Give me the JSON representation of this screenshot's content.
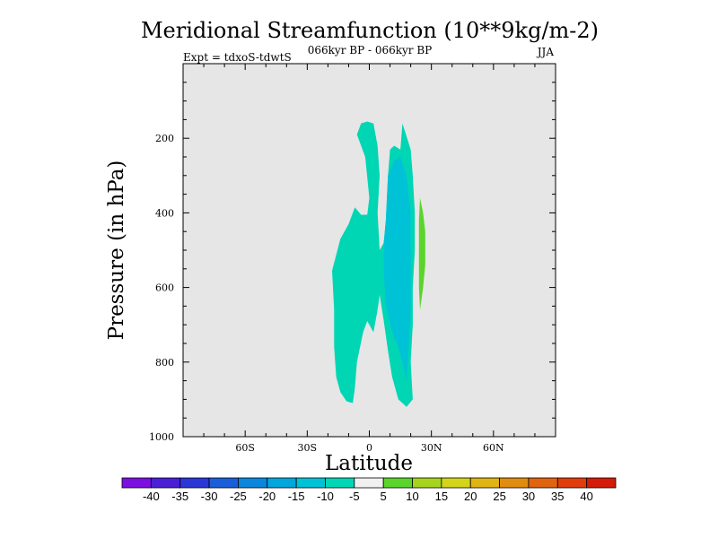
{
  "chart_data": {
    "type": "contour",
    "title": "Meridional Streamfunction (10**9kg/m-2)",
    "subtitle": "066kyr BP - 066kyr BP",
    "left_label": "Expt = tdxoS-tdwtS",
    "right_label": "JJA",
    "xlabel": "Latitude",
    "ylabel": "Pressure (in hPa)",
    "xlim": [
      -90,
      90
    ],
    "ylim": [
      1000,
      0
    ],
    "x_ticks": [
      {
        "value": -60,
        "label": "60S"
      },
      {
        "value": -30,
        "label": "30S"
      },
      {
        "value": 0,
        "label": "0"
      },
      {
        "value": 30,
        "label": "30N"
      },
      {
        "value": 60,
        "label": "60N"
      }
    ],
    "y_ticks": [
      {
        "value": 200,
        "label": "200"
      },
      {
        "value": 400,
        "label": "400"
      },
      {
        "value": 600,
        "label": "600"
      },
      {
        "value": 800,
        "label": "800"
      },
      {
        "value": 1000,
        "label": "1000"
      }
    ],
    "background_color": "#e6e6e6",
    "regions": [
      {
        "level": "-10 to -5",
        "color": "#00d6b4",
        "points": [
          [
            -18,
            555
          ],
          [
            -14,
            470
          ],
          [
            -10,
            430
          ],
          [
            -7,
            385
          ],
          [
            -4,
            405
          ],
          [
            -1,
            405
          ],
          [
            0,
            360
          ],
          [
            -2,
            250
          ],
          [
            -6,
            190
          ],
          [
            -4,
            160
          ],
          [
            -1,
            155
          ],
          [
            2,
            160
          ],
          [
            4,
            220
          ],
          [
            5,
            300
          ],
          [
            4,
            400
          ],
          [
            5,
            500
          ],
          [
            7,
            480
          ],
          [
            8,
            420
          ],
          [
            9,
            300
          ],
          [
            10,
            230
          ],
          [
            12,
            220
          ],
          [
            15,
            230
          ],
          [
            16,
            160
          ],
          [
            20,
            230
          ],
          [
            21,
            300
          ],
          [
            22,
            400
          ],
          [
            22,
            500
          ],
          [
            21,
            600
          ],
          [
            21,
            700
          ],
          [
            20,
            800
          ],
          [
            21,
            900
          ],
          [
            18,
            920
          ],
          [
            14,
            900
          ],
          [
            11,
            840
          ],
          [
            9,
            770
          ],
          [
            7,
            690
          ],
          [
            5,
            620
          ],
          [
            4,
            660
          ],
          [
            2,
            720
          ],
          [
            -1,
            690
          ],
          [
            -3,
            720
          ],
          [
            -6,
            800
          ],
          [
            -7,
            870
          ],
          [
            -8,
            910
          ],
          [
            -11,
            905
          ],
          [
            -14,
            880
          ],
          [
            -16,
            840
          ],
          [
            -17,
            760
          ],
          [
            -17,
            660
          ]
        ]
      },
      {
        "level": "-15 to -10",
        "color": "#00c2d6",
        "points": [
          [
            8,
            420
          ],
          [
            9,
            300
          ],
          [
            12,
            260
          ],
          [
            15,
            250
          ],
          [
            18,
            300
          ],
          [
            20,
            400
          ],
          [
            20,
            550
          ],
          [
            20,
            650
          ],
          [
            19,
            760
          ],
          [
            18,
            850
          ],
          [
            16,
            800
          ],
          [
            14,
            760
          ],
          [
            11,
            720
          ],
          [
            8,
            650
          ],
          [
            7,
            560
          ],
          [
            7,
            480
          ]
        ]
      },
      {
        "level": "5 to 10",
        "color": "#5bd42b",
        "points": [
          [
            24.5,
            360
          ],
          [
            26,
            400
          ],
          [
            27,
            450
          ],
          [
            27,
            540
          ],
          [
            26,
            600
          ],
          [
            24.5,
            660
          ],
          [
            24,
            600
          ],
          [
            24,
            500
          ],
          [
            24,
            420
          ]
        ]
      }
    ],
    "colorbar": {
      "labels": [
        "-40",
        "-35",
        "-30",
        "-25",
        "-20",
        "-15",
        "-10",
        "-5",
        "5",
        "10",
        "15",
        "20",
        "25",
        "30",
        "35",
        "40"
      ],
      "colors": [
        "#7b10e0",
        "#4a1fd6",
        "#2a36d6",
        "#1a5fd9",
        "#0a86dc",
        "#00a6dc",
        "#00c2d6",
        "#00d6b4",
        "#f0f0f0",
        "#5bd42b",
        "#a6d41e",
        "#d4d41a",
        "#e0b414",
        "#e08c10",
        "#e06410",
        "#e03c0c",
        "#d41a08"
      ]
    }
  }
}
